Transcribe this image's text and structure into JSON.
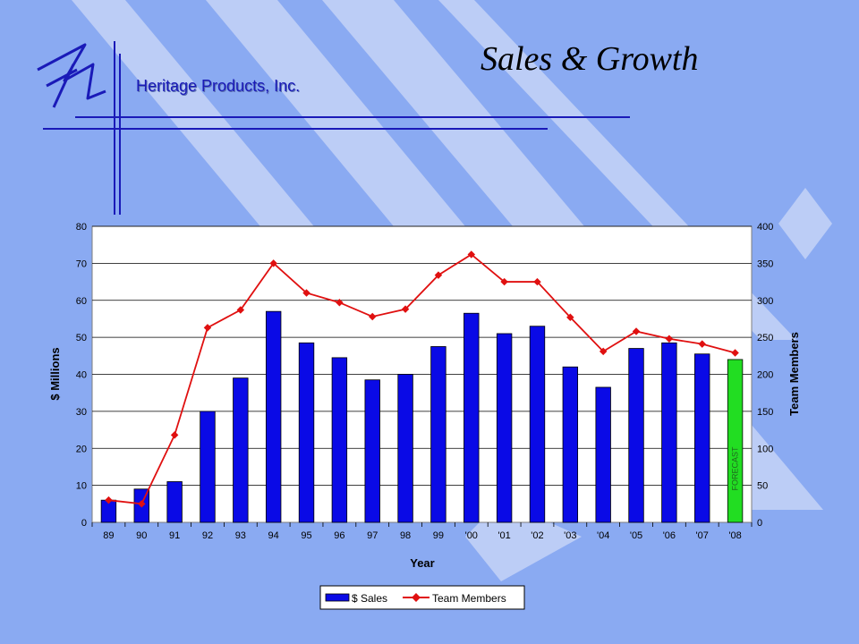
{
  "slide": {
    "title": "Sales & Growth",
    "company": "Heritage Products, Inc.",
    "logo_text": "hp"
  },
  "colors": {
    "background": "#8aaaf2",
    "stripe": "#bccdf6",
    "sales_bar": "#0a0ae6",
    "forecast_bar": "#22dd22",
    "team_line": "#e01010",
    "brand_blue": "#1a1ab8"
  },
  "chart_data": {
    "type": "bar",
    "categories": [
      "89",
      "90",
      "91",
      "92",
      "93",
      "94",
      "95",
      "96",
      "97",
      "98",
      "99",
      "'00",
      "'01",
      "'02",
      "'03",
      "'04",
      "'05",
      "'06",
      "'07",
      "'08"
    ],
    "series": [
      {
        "name": "$ Sales",
        "type": "bar",
        "axis": "left",
        "values": [
          6,
          9,
          11,
          30,
          39,
          57,
          48.5,
          44.5,
          38.5,
          40,
          47.5,
          56.5,
          51,
          53,
          42,
          36.5,
          47,
          48.5,
          45.5,
          44
        ]
      },
      {
        "name": "Team Members",
        "type": "line",
        "axis": "right",
        "values": [
          30,
          25,
          118,
          263,
          287,
          350,
          310,
          297,
          278,
          288,
          334,
          362,
          325,
          325,
          277,
          231,
          258,
          248,
          241,
          229
        ]
      }
    ],
    "forecast_category": "'08",
    "forecast_label": "FORECAST",
    "xlabel": "Year",
    "ylabel": "$ Millions",
    "y2label": "Team Members",
    "ylim": [
      0,
      80
    ],
    "y2lim": [
      0,
      400
    ],
    "yticks": [
      0,
      10,
      20,
      30,
      40,
      50,
      60,
      70,
      80
    ],
    "y2ticks": [
      0,
      50,
      100,
      150,
      200,
      250,
      300,
      350,
      400
    ],
    "grid": true,
    "legend_position": "bottom-center"
  }
}
